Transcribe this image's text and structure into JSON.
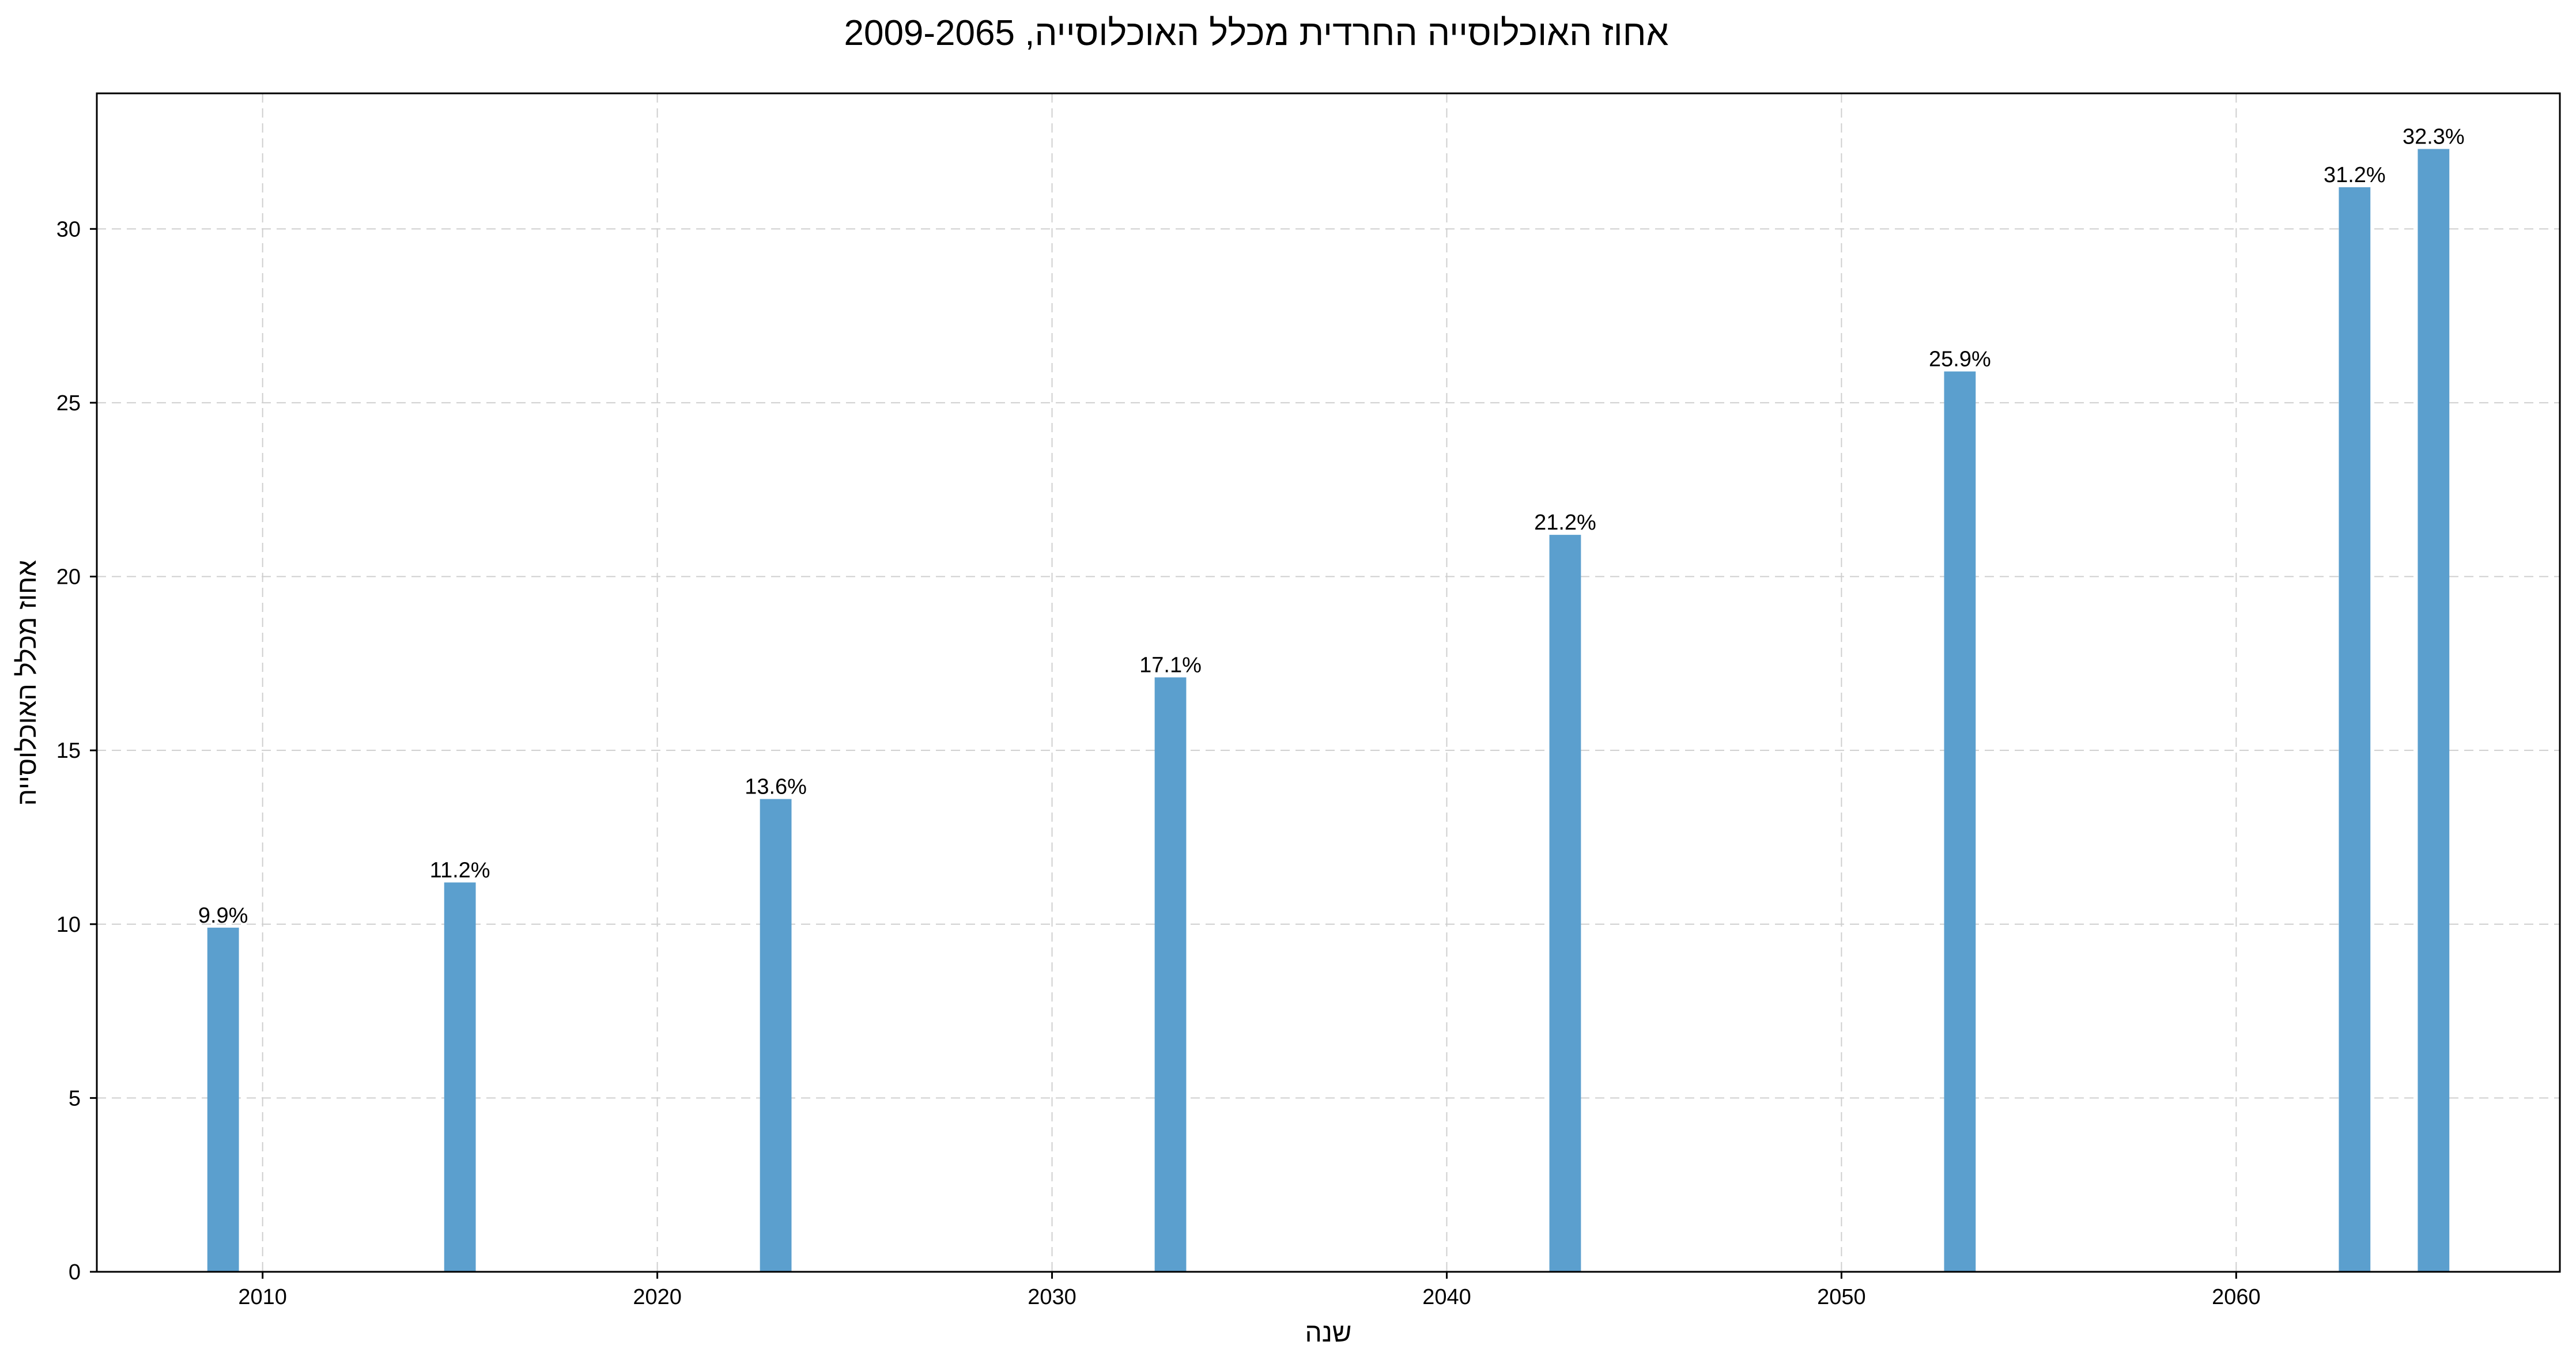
{
  "chart_data": {
    "type": "bar",
    "title": "אחוז האוכלוסייה החרדית מכלל האוכלוסייה, 2009-2065",
    "xlabel": "שנה",
    "ylabel": "אחוז מכלל האוכלוסייה",
    "x": [
      2009,
      2015,
      2023,
      2033,
      2043,
      2053,
      2063,
      2065
    ],
    "values": [
      9.9,
      11.2,
      13.6,
      17.1,
      21.2,
      25.9,
      31.2,
      32.3
    ],
    "data_labels": [
      "9.9%",
      "11.2%",
      "13.6%",
      "17.1%",
      "21.2%",
      "25.9%",
      "31.2%",
      "32.3%"
    ],
    "xlim": [
      2005.8,
      2068.2
    ],
    "ylim": [
      0,
      33.9
    ],
    "x_ticks": [
      2010,
      2020,
      2030,
      2040,
      2050,
      2060
    ],
    "y_ticks": [
      0,
      5,
      10,
      15,
      20,
      25,
      30
    ],
    "grid": true,
    "bar_color": "#5b9fce"
  }
}
